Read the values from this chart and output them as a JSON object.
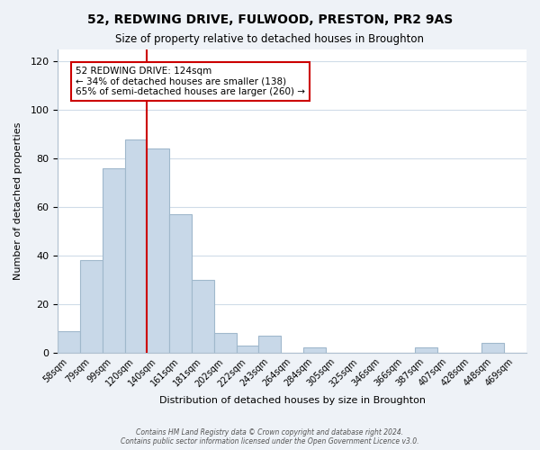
{
  "title": "52, REDWING DRIVE, FULWOOD, PRESTON, PR2 9AS",
  "subtitle": "Size of property relative to detached houses in Broughton",
  "xlabel": "Distribution of detached houses by size in Broughton",
  "ylabel": "Number of detached properties",
  "bin_labels": [
    "58sqm",
    "79sqm",
    "99sqm",
    "120sqm",
    "140sqm",
    "161sqm",
    "181sqm",
    "202sqm",
    "222sqm",
    "243sqm",
    "264sqm",
    "284sqm",
    "305sqm",
    "325sqm",
    "346sqm",
    "366sqm",
    "387sqm",
    "407sqm",
    "428sqm",
    "448sqm",
    "469sqm"
  ],
  "bar_heights": [
    9,
    38,
    76,
    88,
    84,
    57,
    30,
    8,
    3,
    7,
    0,
    2,
    0,
    0,
    0,
    0,
    2,
    0,
    0,
    4,
    0
  ],
  "bar_color": "#c8d8e8",
  "bar_edge_color": "#a0b8cc",
  "vline_x_index": 3.5,
  "vline_color": "#cc0000",
  "annotation_line1": "52 REDWING DRIVE: 124sqm",
  "annotation_line2": "← 34% of detached houses are smaller (138)",
  "annotation_line3": "65% of semi-detached houses are larger (260) →",
  "annotation_box_edgecolor": "#cc0000",
  "ylim": [
    0,
    125
  ],
  "yticks": [
    0,
    20,
    40,
    60,
    80,
    100,
    120
  ],
  "footer_line1": "Contains HM Land Registry data © Crown copyright and database right 2024.",
  "footer_line2": "Contains public sector information licensed under the Open Government Licence v3.0.",
  "bg_color": "#eef2f7",
  "plot_bg_color": "#ffffff",
  "grid_color": "#d0dce8"
}
